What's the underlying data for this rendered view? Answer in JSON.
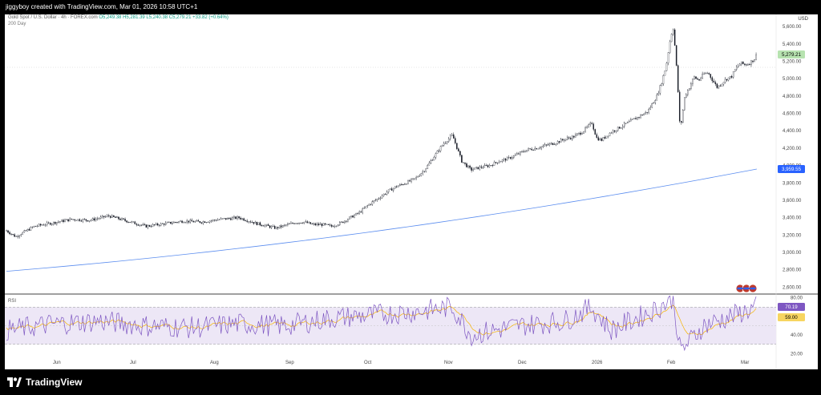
{
  "header": {
    "credit": "jiggyboy created with TradingView.com, Mar 01, 2026 10:58 UTC+1"
  },
  "legend": {
    "symbol": "Gold Spot / U.S. Dollar · 4h · FOREX.com",
    "ohlc": "O5,249.38 H5,281.39 L5,240.38 C5,279.21 +33.82 (+0.64%)",
    "indicator": "200 Day"
  },
  "currency": "USD",
  "rsi_label": "RSI",
  "brand": "TradingView",
  "colors": {
    "candle": "#131722",
    "ma": "#5b8def",
    "rsi": "#7e57c2",
    "rsi_ma": "#f7b500",
    "rsi_band": "#ede7f6",
    "price_badge": "#b7e3b0",
    "ma_badge": "#2962ff",
    "rsi_badge": "#7e57c2",
    "rsi_ma_badge": "#f7d560"
  },
  "chart_data": [
    {
      "type": "candlestick",
      "name": "Gold Spot / U.S. Dollar",
      "x_ticks": [
        "Jun",
        "Jul",
        "Aug",
        "Sep",
        "Oct",
        "Nov",
        "Dec",
        "2026",
        "Feb",
        "Mar"
      ],
      "y_ticks": [
        "5,600.00",
        "5,400.00",
        "5,200.00",
        "5,000.00",
        "4,800.00",
        "4,600.00",
        "4,400.00",
        "4,200.00",
        "4,000.00",
        "3,800.00",
        "3,600.00",
        "3,400.00",
        "3,200.00",
        "3,000.00",
        "2,800.00",
        "2,600.00"
      ],
      "ylim": [
        2520,
        5740
      ],
      "close_path": [
        [
          0,
          3250
        ],
        [
          2,
          3180
        ],
        [
          6,
          3300
        ],
        [
          10,
          3340
        ],
        [
          14,
          3380
        ],
        [
          18,
          3370
        ],
        [
          22,
          3420
        ],
        [
          26,
          3360
        ],
        [
          30,
          3300
        ],
        [
          34,
          3330
        ],
        [
          38,
          3360
        ],
        [
          42,
          3350
        ],
        [
          46,
          3380
        ],
        [
          50,
          3400
        ],
        [
          54,
          3330
        ],
        [
          58,
          3280
        ],
        [
          62,
          3340
        ],
        [
          64,
          3350
        ],
        [
          66,
          3320
        ],
        [
          68,
          3320
        ],
        [
          70,
          3300
        ],
        [
          72,
          3340
        ],
        [
          74,
          3400
        ],
        [
          76,
          3460
        ],
        [
          78,
          3550
        ],
        [
          80,
          3620
        ],
        [
          82,
          3700
        ],
        [
          84,
          3760
        ],
        [
          86,
          3800
        ],
        [
          88,
          3850
        ],
        [
          90,
          3950
        ],
        [
          92,
          4100
        ],
        [
          94,
          4250
        ],
        [
          96,
          4350
        ],
        [
          97,
          4200
        ],
        [
          98,
          4050
        ],
        [
          100,
          3950
        ],
        [
          102,
          3980
        ],
        [
          104,
          4000
        ],
        [
          106,
          4050
        ],
        [
          108,
          4080
        ],
        [
          110,
          4130
        ],
        [
          112,
          4180
        ],
        [
          114,
          4200
        ],
        [
          116,
          4230
        ],
        [
          118,
          4260
        ],
        [
          120,
          4300
        ],
        [
          122,
          4330
        ],
        [
          124,
          4390
        ],
        [
          126,
          4490
        ],
        [
          127,
          4320
        ],
        [
          128,
          4290
        ],
        [
          130,
          4380
        ],
        [
          132,
          4440
        ],
        [
          134,
          4500
        ],
        [
          136,
          4560
        ],
        [
          138,
          4620
        ],
        [
          140,
          4800
        ],
        [
          141,
          4950
        ],
        [
          142,
          5150
        ],
        [
          143,
          5500
        ],
        [
          143.5,
          5580
        ],
        [
          144,
          5300
        ],
        [
          144.5,
          4900
        ],
        [
          145,
          4400
        ],
        [
          146,
          4800
        ],
        [
          147,
          4900
        ],
        [
          148,
          5020
        ],
        [
          149,
          4980
        ],
        [
          150,
          5050
        ],
        [
          151,
          5070
        ],
        [
          152,
          4980
        ],
        [
          153,
          4900
        ],
        [
          154,
          4950
        ],
        [
          155,
          5000
        ],
        [
          156,
          5020
        ],
        [
          157,
          5120
        ],
        [
          158,
          5180
        ],
        [
          159,
          5160
        ],
        [
          160,
          5180
        ],
        [
          161,
          5230
        ],
        [
          161.5,
          5279.21
        ]
      ],
      "series": [
        {
          "name": "200 Day",
          "x": [
            0,
            161.5
          ],
          "y": [
            2782,
            3959.55
          ]
        }
      ],
      "last_price": "5,279.21",
      "ma_value": "3,959.55"
    },
    {
      "type": "line",
      "name": "RSI",
      "y_ticks": [
        "80.00",
        "60.00",
        "40.00",
        "20.00"
      ],
      "ylim": [
        16,
        84
      ],
      "bands": [
        30,
        70
      ],
      "rsi_value": "70.19",
      "rsi_ma_value": "59.00",
      "series": [
        {
          "name": "RSI",
          "x": [
            0,
            10,
            20,
            30,
            40,
            50,
            60,
            70,
            80,
            88,
            96,
            100,
            110,
            120,
            126,
            130,
            140,
            143.5,
            145,
            150,
            156,
            161.5
          ],
          "y": [
            45,
            52,
            55,
            50,
            48,
            52,
            50,
            58,
            62,
            65,
            70,
            40,
            50,
            55,
            70,
            45,
            68,
            80,
            22,
            50,
            60,
            70.19
          ]
        }
      ]
    }
  ]
}
